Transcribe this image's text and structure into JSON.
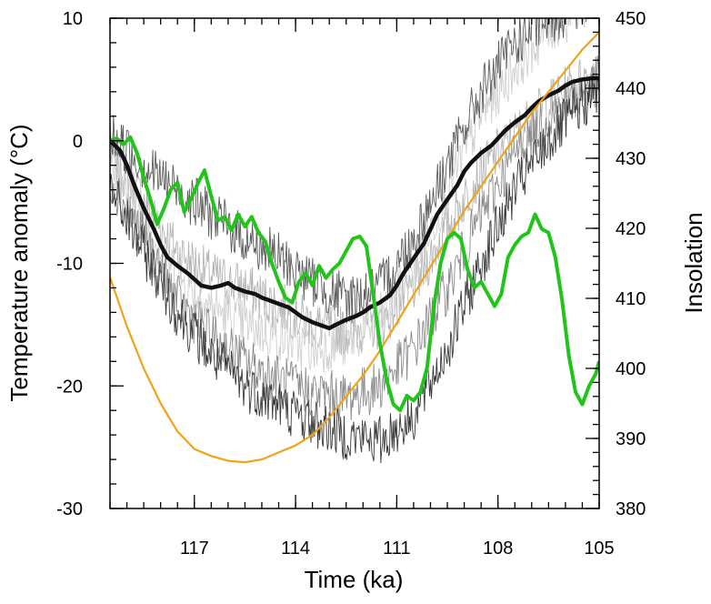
{
  "chart_data": {
    "type": "line",
    "xlabel": "Time (ka)",
    "ylabel": "Temperature anomaly (°C)",
    "y2label": "Insolation",
    "xlim": [
      119.5,
      105
    ],
    "ylim": [
      -30,
      10
    ],
    "y2lim": [
      380,
      450
    ],
    "x_ticks": [
      117,
      114,
      111,
      108,
      105
    ],
    "y_ticks": [
      -30,
      -20,
      -10,
      0,
      10
    ],
    "y2_ticks": [
      380,
      390,
      400,
      410,
      420,
      430,
      440,
      450
    ],
    "x_minor_step": 0.5,
    "y_minor_step": 2,
    "y2_minor_step": 2,
    "grid": false,
    "colors": {
      "axis": "#000000",
      "insolation": "#f0a31a",
      "green": "#22c41c",
      "ensemble_mean": "#111111",
      "ensemble_members": [
        "#3a3a3a",
        "#5c5c5c",
        "#8a8a8a",
        "#b5b5b5",
        "#d0d0d0"
      ],
      "y2label": "#f0a31a"
    },
    "series": [
      {
        "axis": "y2",
        "x": [
          119.5,
          119,
          118.5,
          118,
          117.5,
          117,
          116.5,
          116,
          115.5,
          115,
          114.5,
          114,
          113.5,
          113,
          112.5,
          112,
          111.5,
          111,
          110.5,
          110,
          109.5,
          109,
          108.5,
          108,
          107.5,
          107,
          106.5,
          106,
          105.5,
          105
        ],
        "values": [
          413,
          406,
          400,
          395,
          391,
          388.5,
          387.5,
          386.8,
          386.6,
          387,
          388,
          389,
          390.5,
          393,
          396,
          399,
          402.5,
          406.5,
          410.5,
          414.5,
          418.5,
          422.5,
          426,
          429.5,
          433,
          436.5,
          439.5,
          442.5,
          445.5,
          448
        ]
      },
      {
        "x": [
          119.5,
          119.2,
          119,
          118.8,
          118.5,
          118.2,
          118,
          117.8,
          117.5,
          117.2,
          117,
          116.8,
          116.5,
          116.2,
          116,
          115.8,
          115.5,
          115.2,
          115,
          114.8,
          114.5,
          114.2,
          114,
          113.8,
          113.5,
          113.2,
          113,
          112.8,
          112.5,
          112.2,
          112,
          111.8,
          111.5,
          111.2,
          111,
          110.8,
          110.5,
          110.2,
          110,
          109.8,
          109.5,
          109.2,
          109,
          108.8,
          108.5,
          108.2,
          108,
          107.8,
          107.5,
          107.2,
          107,
          106.8,
          106.5,
          106.2,
          106,
          105.8,
          105.5,
          105.2,
          105
        ],
        "values": [
          0,
          -0.8,
          -2,
          -3.5,
          -5.5,
          -7.2,
          -8.5,
          -9.5,
          -10.2,
          -10.8,
          -11.3,
          -11.8,
          -12.0,
          -11.8,
          -11.6,
          -12.0,
          -12.3,
          -12.5,
          -12.8,
          -13.0,
          -13.3,
          -13.6,
          -14.0,
          -14.4,
          -14.8,
          -15.1,
          -15.3,
          -15.0,
          -14.6,
          -14.3,
          -14.0,
          -13.6,
          -13.2,
          -12.6,
          -11.8,
          -10.8,
          -9.6,
          -8.4,
          -7.2,
          -6.0,
          -4.8,
          -3.6,
          -2.5,
          -1.8,
          -1.0,
          -0.4,
          0.2,
          0.8,
          1.5,
          2.1,
          2.7,
          3.2,
          3.7,
          4.1,
          4.5,
          4.8,
          5.0,
          5.1,
          5.1
        ]
      },
      {
        "x": [
          119.5,
          119.3,
          119.1,
          118.9,
          118.7,
          118.5,
          118.3,
          118.1,
          117.9,
          117.7,
          117.5,
          117.3,
          117.1,
          116.9,
          116.7,
          116.5,
          116.3,
          116.1,
          115.9,
          115.7,
          115.5,
          115.3,
          115.1,
          114.9,
          114.7,
          114.5,
          114.3,
          114.1,
          113.9,
          113.7,
          113.5,
          113.3,
          113.1,
          112.9,
          112.7,
          112.5,
          112.3,
          112.1,
          111.9,
          111.7,
          111.5,
          111.3,
          111.1,
          110.9,
          110.7,
          110.5,
          110.3,
          110.1,
          109.9,
          109.7,
          109.5,
          109.3,
          109.1,
          108.9,
          108.7,
          108.5,
          108.3,
          108.1,
          107.9,
          107.7,
          107.5,
          107.3,
          107.1,
          106.9,
          106.7,
          106.5,
          106.3,
          106.1,
          105.9,
          105.7,
          105.5,
          105.3,
          105.1,
          105
        ],
        "values": [
          0,
          0.2,
          -0.3,
          0.3,
          -1.0,
          -3.0,
          -4.8,
          -6.8,
          -5.5,
          -4.0,
          -3.4,
          -5.8,
          -4.8,
          -3.5,
          -2.4,
          -4.5,
          -6.5,
          -6.2,
          -7.3,
          -6.0,
          -7.0,
          -6.2,
          -7.5,
          -8.2,
          -10.0,
          -11.5,
          -12.8,
          -13.2,
          -11.5,
          -10.8,
          -11.8,
          -10.2,
          -11.2,
          -10.5,
          -10.0,
          -9.0,
          -8.0,
          -7.8,
          -8.6,
          -12.5,
          -16.5,
          -19.5,
          -21.5,
          -22.0,
          -20.8,
          -21.2,
          -20.5,
          -18.5,
          -13.5,
          -10.0,
          -8.0,
          -7.5,
          -8.0,
          -10.5,
          -12.0,
          -11.5,
          -12.5,
          -13.5,
          -12.5,
          -9.5,
          -8.5,
          -7.8,
          -7.5,
          -6.0,
          -7.2,
          -7.5,
          -9.5,
          -13.0,
          -17.5,
          -20.5,
          -21.5,
          -20.0,
          -19.0,
          -18.0
        ]
      },
      {
        "x": [
          119.5,
          118.5,
          117.5,
          116.5,
          115.5,
          114.5,
          113.5,
          112.5,
          111.5,
          110.5,
          109.5,
          108.5,
          107.5,
          106.5,
          105.5,
          105
        ],
        "values": [
          -1,
          -5,
          -9,
          -11,
          -12,
          -13.5,
          -15,
          -15.5,
          -15,
          -12,
          -7,
          -2.5,
          0.5,
          3,
          5,
          5.5
        ]
      },
      {
        "x": [
          119.5,
          118.5,
          117.5,
          116.5,
          115.5,
          114.5,
          113.5,
          112.5,
          111.5,
          110.5,
          109.5,
          108.5,
          107.5,
          106.5,
          105.5,
          105
        ],
        "values": [
          -2,
          -6.5,
          -11,
          -13.5,
          -15,
          -16,
          -17,
          -16.5,
          -14.5,
          -10.5,
          -4,
          2,
          6,
          9,
          11,
          12
        ]
      },
      {
        "x": [
          119.5,
          118.5,
          117.5,
          116.5,
          115.5,
          114.5,
          113.5,
          112.5,
          111.5,
          110.5,
          109.5,
          108.5,
          107.5,
          106.5,
          105.5,
          105
        ],
        "values": [
          -3,
          -8,
          -13,
          -16,
          -18,
          -19.5,
          -20.5,
          -21,
          -20,
          -17,
          -12,
          -6,
          -1,
          2,
          4,
          5
        ]
      },
      {
        "x": [
          119.5,
          118.5,
          117.5,
          116.5,
          115.5,
          114.5,
          113.5,
          112.5,
          111.5,
          110.5,
          109.5,
          108.5,
          107.5,
          106.5,
          105.5,
          105
        ],
        "values": [
          -4,
          -9,
          -14,
          -17.5,
          -20,
          -21.5,
          -23,
          -24,
          -24.5,
          -22.5,
          -17,
          -10,
          -4,
          0,
          3,
          4
        ]
      },
      {
        "x": [
          119.5,
          118.5,
          117.5,
          116.5,
          115.5,
          114.5,
          113.5,
          112.5,
          111.5,
          110.5,
          109.5,
          108.5,
          107.5,
          106.5,
          105.5,
          105
        ],
        "values": [
          0.5,
          -2,
          -4,
          -6,
          -8,
          -9.5,
          -11.5,
          -13,
          -12,
          -8,
          -2,
          4,
          8,
          10,
          11,
          12
        ]
      }
    ]
  }
}
